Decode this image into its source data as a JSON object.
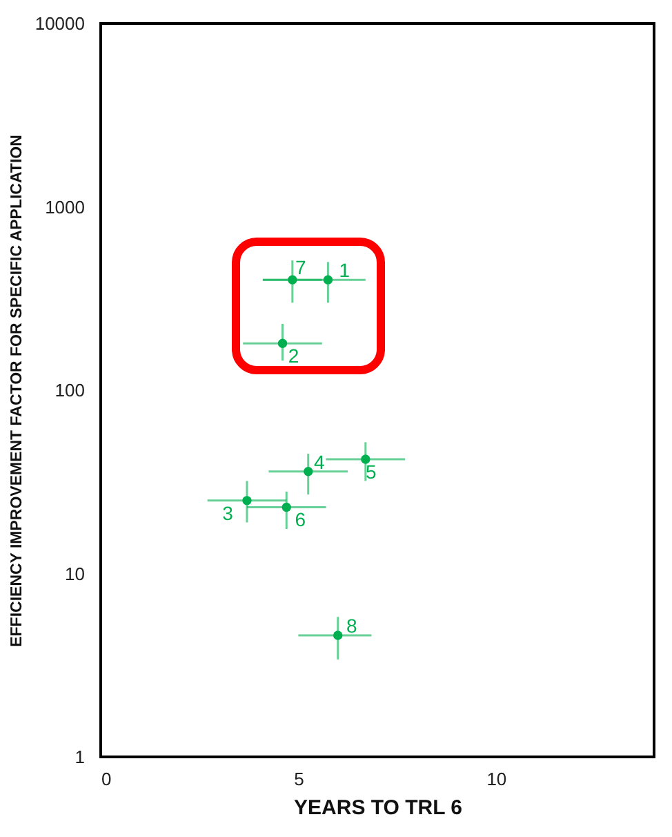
{
  "chart_data": {
    "type": "scatter",
    "xlabel": "YEARS TO TRL 6",
    "ylabel": "EFFICIENCY IMPROVEMENT FACTOR FOR SPECIFIC APPLICATION",
    "x": [
      5.75,
      4.6,
      3.7,
      5.25,
      6.7,
      4.7,
      4.85,
      6.0
    ],
    "series": [
      {
        "color": "#00b050",
        "values": [
          400,
          180,
          25,
          36,
          42,
          23,
          400,
          4.6
        ],
        "errors": [
          [
            300,
            500
          ],
          [
            145,
            230
          ],
          [
            19,
            32
          ],
          [
            27,
            45
          ],
          [
            32,
            52
          ],
          [
            17.5,
            28
          ],
          [
            300,
            510
          ],
          [
            3.4,
            5.8
          ]
        ],
        "xerrors": [
          [
            4.1,
            6.7
          ],
          [
            3.6,
            5.6
          ],
          [
            2.7,
            4.7
          ],
          [
            4.25,
            6.25
          ],
          [
            5.7,
            7.7
          ],
          [
            3.7,
            5.7
          ],
          [
            4.1,
            5.6
          ],
          [
            5.0,
            6.85
          ]
        ]
      }
    ],
    "annotations": [
      {
        "text": "1",
        "x": 5.75,
        "y": 400
      },
      {
        "text": "2",
        "x": 4.6,
        "y": 180
      },
      {
        "text": "3",
        "x": 3.7,
        "y": 25
      },
      {
        "text": "4",
        "x": 5.25,
        "y": 36
      },
      {
        "text": "5",
        "x": 6.7,
        "y": 42
      },
      {
        "text": "6",
        "x": 4.7,
        "y": 23
      },
      {
        "text": "7",
        "x": 4.85,
        "y": 400
      },
      {
        "text": "8",
        "x": 6.0,
        "y": 4.6
      }
    ],
    "xlim": [
      0,
      14
    ],
    "xticks": [
      0,
      5,
      10
    ],
    "ylim": [
      1,
      10000
    ],
    "yticks": [
      1,
      10,
      100,
      1000,
      10000
    ],
    "log": "y",
    "grid": false,
    "marker": "circle"
  }
}
